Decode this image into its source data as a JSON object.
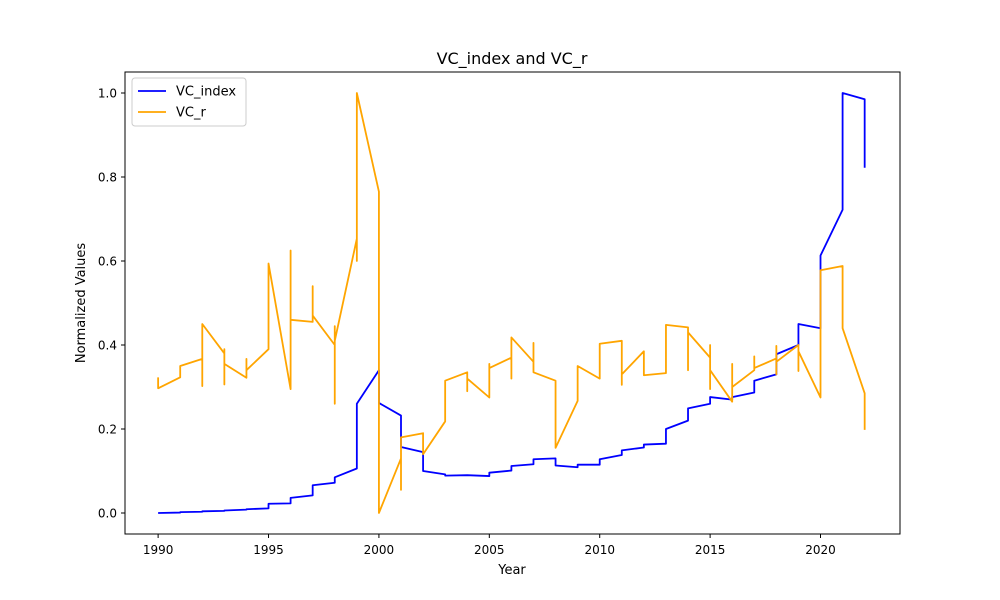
{
  "chart_data": {
    "type": "line",
    "title": "VC_index and VC_r",
    "xlabel": "Year",
    "ylabel": "Normalized Values",
    "xlim": [
      1988.5,
      2023.6
    ],
    "ylim": [
      -0.05,
      1.05
    ],
    "xticks": [
      1990,
      1995,
      2000,
      2005,
      2010,
      2015,
      2020
    ],
    "xtick_labels": [
      "1990",
      "1995",
      "2000",
      "2005",
      "2010",
      "2015",
      "2020"
    ],
    "yticks": [
      0.0,
      0.2,
      0.4,
      0.6,
      0.8,
      1.0
    ],
    "ytick_labels": [
      "0.0",
      "0.2",
      "0.4",
      "0.6",
      "0.8",
      "1.0"
    ],
    "grid": false,
    "legend_position": "top-left",
    "series": [
      {
        "name": "VC_index",
        "color": "#0000ff",
        "points": [
          [
            1990,
            0.0
          ],
          [
            1991,
            0.001
          ],
          [
            1991,
            0.002
          ],
          [
            1992,
            0.003
          ],
          [
            1992,
            0.004
          ],
          [
            1993,
            0.005
          ],
          [
            1993,
            0.006
          ],
          [
            1994,
            0.008
          ],
          [
            1994,
            0.009
          ],
          [
            1995,
            0.011
          ],
          [
            1995,
            0.022
          ],
          [
            1996,
            0.023
          ],
          [
            1996,
            0.036
          ],
          [
            1997,
            0.042
          ],
          [
            1997,
            0.066
          ],
          [
            1998,
            0.072
          ],
          [
            1998,
            0.085
          ],
          [
            1999,
            0.106
          ],
          [
            1999,
            0.26
          ],
          [
            2000,
            0.34
          ],
          [
            2000,
            0.262
          ],
          [
            2001,
            0.232
          ],
          [
            2001,
            0.157
          ],
          [
            2002,
            0.145
          ],
          [
            2002,
            0.1
          ],
          [
            2003,
            0.092
          ],
          [
            2003,
            0.089
          ],
          [
            2004,
            0.09
          ],
          [
            2004,
            0.09
          ],
          [
            2005,
            0.088
          ],
          [
            2005,
            0.096
          ],
          [
            2006,
            0.101
          ],
          [
            2006,
            0.112
          ],
          [
            2007,
            0.116
          ],
          [
            2007,
            0.128
          ],
          [
            2008,
            0.13
          ],
          [
            2008,
            0.113
          ],
          [
            2009,
            0.109
          ],
          [
            2009,
            0.115
          ],
          [
            2010,
            0.115
          ],
          [
            2010,
            0.128
          ],
          [
            2011,
            0.138
          ],
          [
            2011,
            0.149
          ],
          [
            2012,
            0.156
          ],
          [
            2012,
            0.163
          ],
          [
            2013,
            0.165
          ],
          [
            2013,
            0.2
          ],
          [
            2014,
            0.22
          ],
          [
            2014,
            0.249
          ],
          [
            2015,
            0.26
          ],
          [
            2015,
            0.276
          ],
          [
            2016,
            0.27
          ],
          [
            2016,
            0.276
          ],
          [
            2017,
            0.287
          ],
          [
            2017,
            0.315
          ],
          [
            2018,
            0.33
          ],
          [
            2018,
            0.378
          ],
          [
            2019,
            0.4
          ],
          [
            2019,
            0.45
          ],
          [
            2020,
            0.44
          ],
          [
            2020,
            0.613
          ],
          [
            2021,
            0.722
          ],
          [
            2021,
            1.0
          ],
          [
            2022,
            0.985
          ],
          [
            2022,
            0.822
          ]
        ]
      },
      {
        "name": "VC_r",
        "color": "#ffa500",
        "points": [
          [
            1990,
            0.323
          ],
          [
            1990,
            0.297
          ],
          [
            1991,
            0.323
          ],
          [
            1991,
            0.35
          ],
          [
            1992,
            0.367
          ],
          [
            1992,
            0.302
          ],
          [
            1992,
            0.45
          ],
          [
            1993,
            0.38
          ],
          [
            1993,
            0.306
          ],
          [
            1993,
            0.39
          ],
          [
            1993,
            0.355
          ],
          [
            1994,
            0.322
          ],
          [
            1994,
            0.367
          ],
          [
            1994,
            0.34
          ],
          [
            1995,
            0.39
          ],
          [
            1995,
            0.594
          ],
          [
            1996,
            0.295
          ],
          [
            1996,
            0.625
          ],
          [
            1996,
            0.46
          ],
          [
            1997,
            0.455
          ],
          [
            1997,
            0.54
          ],
          [
            1997,
            0.47
          ],
          [
            1998,
            0.4
          ],
          [
            1998,
            0.26
          ],
          [
            1998,
            0.445
          ],
          [
            1998,
            0.41
          ],
          [
            1999,
            0.653
          ],
          [
            1999,
            0.6
          ],
          [
            1999,
            1.0
          ],
          [
            2000,
            0.765
          ],
          [
            2000,
            0.0
          ],
          [
            2001,
            0.13
          ],
          [
            2001,
            0.055
          ],
          [
            2001,
            0.18
          ],
          [
            2002,
            0.19
          ],
          [
            2002,
            0.14
          ],
          [
            2003,
            0.218
          ],
          [
            2003,
            0.315
          ],
          [
            2004,
            0.335
          ],
          [
            2004,
            0.29
          ],
          [
            2004,
            0.32
          ],
          [
            2005,
            0.275
          ],
          [
            2005,
            0.355
          ],
          [
            2005,
            0.345
          ],
          [
            2006,
            0.37
          ],
          [
            2006,
            0.32
          ],
          [
            2006,
            0.418
          ],
          [
            2007,
            0.36
          ],
          [
            2007,
            0.405
          ],
          [
            2007,
            0.335
          ],
          [
            2008,
            0.315
          ],
          [
            2008,
            0.155
          ],
          [
            2009,
            0.267
          ],
          [
            2009,
            0.35
          ],
          [
            2010,
            0.32
          ],
          [
            2010,
            0.403
          ],
          [
            2011,
            0.41
          ],
          [
            2011,
            0.305
          ],
          [
            2011,
            0.33
          ],
          [
            2012,
            0.385
          ],
          [
            2012,
            0.328
          ],
          [
            2013,
            0.333
          ],
          [
            2013,
            0.448
          ],
          [
            2014,
            0.442
          ],
          [
            2014,
            0.34
          ],
          [
            2014,
            0.43
          ],
          [
            2015,
            0.37
          ],
          [
            2015,
            0.295
          ],
          [
            2015,
            0.4
          ],
          [
            2015,
            0.34
          ],
          [
            2016,
            0.265
          ],
          [
            2016,
            0.355
          ],
          [
            2016,
            0.3
          ],
          [
            2017,
            0.34
          ],
          [
            2017,
            0.373
          ],
          [
            2017,
            0.345
          ],
          [
            2018,
            0.368
          ],
          [
            2018,
            0.33
          ],
          [
            2018,
            0.398
          ],
          [
            2018,
            0.36
          ],
          [
            2019,
            0.4
          ],
          [
            2019,
            0.338
          ],
          [
            2019,
            0.385
          ],
          [
            2020,
            0.275
          ],
          [
            2020,
            0.578
          ],
          [
            2021,
            0.588
          ],
          [
            2021,
            0.44
          ],
          [
            2022,
            0.285
          ],
          [
            2022,
            0.198
          ]
        ]
      }
    ]
  }
}
